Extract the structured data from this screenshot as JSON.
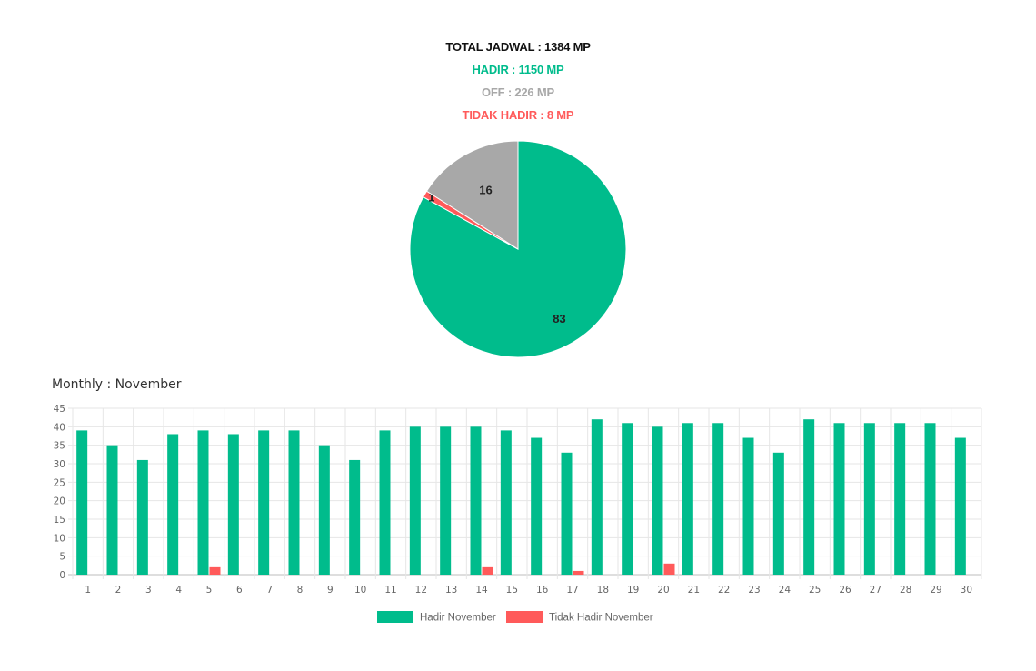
{
  "summary": {
    "total": "TOTAL JADWAL : 1384 MP",
    "hadir": "HADIR : 1150 MP",
    "off": "OFF : 226 MP",
    "tidak_hadir": "TIDAK HADIR : 8 MP"
  },
  "colors": {
    "hadir": "#00BC8C",
    "off": "#A8A8A8",
    "tidak_hadir": "#FF5A5A",
    "total": "#111111",
    "grid": "#E6E6E6"
  },
  "monthly_title": "Monthly : November",
  "chart_data": [
    {
      "type": "pie",
      "labels": [
        "",
        "",
        ""
      ],
      "values": [
        83,
        1,
        16
      ],
      "data_labels": [
        "83",
        "1",
        "16"
      ],
      "colors": [
        "#00BC8C",
        "#FF5A5A",
        "#A8A8A8"
      ]
    },
    {
      "type": "bar",
      "title": "Monthly : November",
      "categories": [
        "1",
        "2",
        "3",
        "4",
        "5",
        "6",
        "7",
        "8",
        "9",
        "10",
        "11",
        "12",
        "13",
        "14",
        "15",
        "16",
        "17",
        "18",
        "19",
        "20",
        "21",
        "22",
        "23",
        "24",
        "25",
        "26",
        "27",
        "28",
        "29",
        "30"
      ],
      "series": [
        {
          "name": "Hadir November",
          "color": "#00BC8C",
          "values": [
            39,
            35,
            31,
            38,
            39,
            38,
            39,
            39,
            35,
            31,
            39,
            40,
            40,
            40,
            39,
            37,
            33,
            42,
            41,
            40,
            41,
            41,
            37,
            33,
            42,
            41,
            41,
            41,
            41,
            37
          ]
        },
        {
          "name": "Tidak Hadir November",
          "color": "#FF5A5A",
          "values": [
            0,
            0,
            0,
            0,
            2,
            0,
            0,
            0,
            0,
            0,
            0,
            0,
            0,
            2,
            0,
            0,
            1,
            0,
            0,
            3,
            0,
            0,
            0,
            0,
            0,
            0,
            0,
            0,
            0,
            0
          ]
        }
      ],
      "ylim": [
        0,
        45
      ],
      "yticks": [
        "0",
        "5",
        "10",
        "15",
        "20",
        "25",
        "30",
        "35",
        "40",
        "45"
      ],
      "grid": true,
      "legend": "bottom"
    }
  ]
}
